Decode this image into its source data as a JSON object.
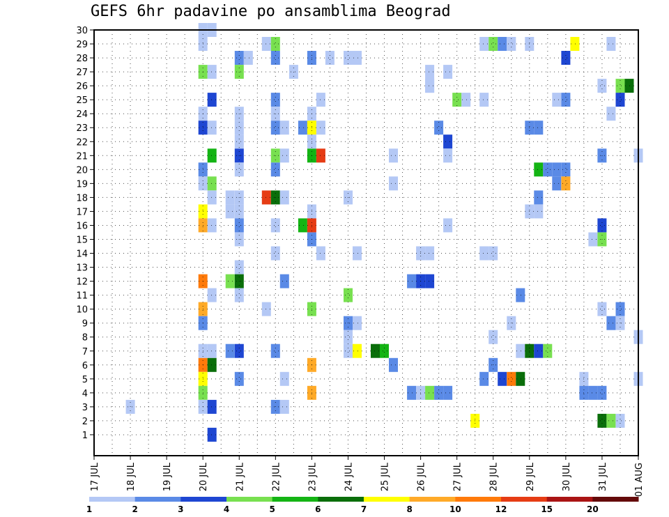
{
  "chart_data": {
    "type": "heatmap",
    "title": "GEFS 6hr padavine po ansamblima Beograd",
    "y_ticks": [
      "1",
      "2",
      "3",
      "4",
      "5",
      "6",
      "7",
      "8",
      "9",
      "10",
      "11",
      "12",
      "13",
      "14",
      "15",
      "16",
      "17",
      "18",
      "19",
      "20",
      "21",
      "22",
      "23",
      "24",
      "25",
      "26",
      "27",
      "28",
      "29",
      "30"
    ],
    "ylim": [
      0,
      30
    ],
    "x_ticks": [
      "17 JUL",
      "18 JUL",
      "19 JUL",
      "20 JUL",
      "21 JUL",
      "22 JUL",
      "23 JUL",
      "24 JUL",
      "25 JUL",
      "26 JUL",
      "27 JUL",
      "28 JUL",
      "29 JUL",
      "30 JUL",
      "31 JUL",
      "01 AUG"
    ],
    "x_range_steps": [
      0,
      60
    ],
    "grid": true,
    "colorbar": {
      "labels": [
        "1",
        "2",
        "3",
        "4",
        "5",
        "6",
        "7",
        "8",
        "10",
        "12",
        "15",
        "20"
      ],
      "colors": [
        "#b4c8f5",
        "#5a8ae6",
        "#1e46d2",
        "#78e050",
        "#14b414",
        "#0a6e0a",
        "#ffff00",
        "#ffaa28",
        "#ff7a0a",
        "#e63c14",
        "#aa1414",
        "#640a0a"
      ]
    },
    "cells": [
      [
        12,
        30,
        1
      ],
      [
        13,
        30,
        1
      ],
      [
        12,
        29,
        1
      ],
      [
        19,
        29,
        1
      ],
      [
        20,
        29,
        4
      ],
      [
        43,
        29,
        1
      ],
      [
        44,
        29,
        4
      ],
      [
        45,
        29,
        2
      ],
      [
        46,
        29,
        1
      ],
      [
        48,
        29,
        1
      ],
      [
        53,
        29,
        7
      ],
      [
        57,
        29,
        1
      ],
      [
        16,
        28,
        2
      ],
      [
        17,
        28,
        1
      ],
      [
        20,
        28,
        2
      ],
      [
        24,
        28,
        2
      ],
      [
        26,
        28,
        1
      ],
      [
        28,
        28,
        1
      ],
      [
        29,
        28,
        1
      ],
      [
        52,
        28,
        3
      ],
      [
        12,
        27,
        4
      ],
      [
        13,
        27,
        1
      ],
      [
        16,
        27,
        4
      ],
      [
        22,
        27,
        1
      ],
      [
        37,
        27,
        1
      ],
      [
        39,
        27,
        1
      ],
      [
        37,
        26,
        1
      ],
      [
        37,
        26,
        1
      ],
      [
        56,
        26,
        1
      ],
      [
        58,
        26,
        4
      ],
      [
        59,
        26,
        6
      ],
      [
        13,
        25,
        3
      ],
      [
        20,
        25,
        2
      ],
      [
        25,
        25,
        1
      ],
      [
        40,
        25,
        4
      ],
      [
        41,
        25,
        1
      ],
      [
        43,
        25,
        1
      ],
      [
        51,
        25,
        1
      ],
      [
        52,
        25,
        2
      ],
      [
        58,
        25,
        3
      ],
      [
        12,
        24,
        1
      ],
      [
        16,
        24,
        1
      ],
      [
        20,
        24,
        1
      ],
      [
        24,
        24,
        1
      ],
      [
        57,
        24,
        1
      ],
      [
        12,
        23,
        3
      ],
      [
        13,
        23,
        1
      ],
      [
        16,
        23,
        1
      ],
      [
        20,
        23,
        2
      ],
      [
        21,
        23,
        1
      ],
      [
        23,
        23,
        2
      ],
      [
        24,
        23,
        7
      ],
      [
        25,
        23,
        1
      ],
      [
        38,
        23,
        2
      ],
      [
        48,
        23,
        2
      ],
      [
        49,
        23,
        2
      ],
      [
        16,
        22,
        1
      ],
      [
        24,
        22,
        1
      ],
      [
        39,
        22,
        3
      ],
      [
        13,
        21,
        5
      ],
      [
        16,
        21,
        3
      ],
      [
        20,
        21,
        4
      ],
      [
        21,
        21,
        1
      ],
      [
        24,
        21,
        5
      ],
      [
        25,
        21,
        10
      ],
      [
        33,
        21,
        1
      ],
      [
        39,
        21,
        1
      ],
      [
        56,
        21,
        2
      ],
      [
        60,
        21,
        1
      ],
      [
        12,
        20,
        2
      ],
      [
        16,
        20,
        1
      ],
      [
        20,
        20,
        2
      ],
      [
        49,
        20,
        5
      ],
      [
        50,
        20,
        2
      ],
      [
        51,
        20,
        2
      ],
      [
        52,
        20,
        2
      ],
      [
        12,
        19,
        1
      ],
      [
        13,
        19,
        4
      ],
      [
        33,
        19,
        1
      ],
      [
        51,
        19,
        2
      ],
      [
        52,
        19,
        8
      ],
      [
        13,
        18,
        1
      ],
      [
        15,
        18,
        1
      ],
      [
        16,
        18,
        1
      ],
      [
        19,
        18,
        10
      ],
      [
        20,
        18,
        6
      ],
      [
        21,
        18,
        1
      ],
      [
        28,
        18,
        1
      ],
      [
        49,
        18,
        2
      ],
      [
        12,
        17,
        7
      ],
      [
        15,
        17,
        1
      ],
      [
        16,
        17,
        1
      ],
      [
        24,
        17,
        1
      ],
      [
        48,
        17,
        1
      ],
      [
        49,
        17,
        1
      ],
      [
        12,
        16,
        8
      ],
      [
        13,
        16,
        1
      ],
      [
        16,
        16,
        2
      ],
      [
        20,
        16,
        1
      ],
      [
        23,
        16,
        5
      ],
      [
        24,
        16,
        10
      ],
      [
        39,
        16,
        1
      ],
      [
        56,
        16,
        3
      ],
      [
        16,
        15,
        1
      ],
      [
        24,
        15,
        2
      ],
      [
        55,
        15,
        1
      ],
      [
        56,
        15,
        4
      ],
      [
        20,
        14,
        1
      ],
      [
        25,
        14,
        1
      ],
      [
        29,
        14,
        1
      ],
      [
        36,
        14,
        1
      ],
      [
        37,
        14,
        1
      ],
      [
        43,
        14,
        1
      ],
      [
        44,
        14,
        1
      ],
      [
        16,
        13,
        1
      ],
      [
        12,
        12,
        9
      ],
      [
        15,
        12,
        4
      ],
      [
        16,
        12,
        6
      ],
      [
        21,
        12,
        2
      ],
      [
        35,
        12,
        2
      ],
      [
        36,
        12,
        3
      ],
      [
        37,
        12,
        3
      ],
      [
        13,
        11,
        1
      ],
      [
        16,
        11,
        1
      ],
      [
        28,
        11,
        4
      ],
      [
        47,
        11,
        2
      ],
      [
        12,
        10,
        8
      ],
      [
        19,
        10,
        1
      ],
      [
        24,
        10,
        4
      ],
      [
        56,
        10,
        1
      ],
      [
        58,
        10,
        2
      ],
      [
        12,
        9,
        2
      ],
      [
        28,
        9,
        2
      ],
      [
        29,
        9,
        1
      ],
      [
        46,
        9,
        1
      ],
      [
        57,
        9,
        2
      ],
      [
        58,
        9,
        1
      ],
      [
        28,
        8,
        1
      ],
      [
        44,
        8,
        1
      ],
      [
        60,
        8,
        1
      ],
      [
        12,
        7,
        1
      ],
      [
        13,
        7,
        1
      ],
      [
        15,
        7,
        2
      ],
      [
        16,
        7,
        3
      ],
      [
        20,
        7,
        2
      ],
      [
        28,
        7,
        1
      ],
      [
        29,
        7,
        7
      ],
      [
        31,
        7,
        6
      ],
      [
        32,
        7,
        5
      ],
      [
        47,
        7,
        1
      ],
      [
        48,
        7,
        6
      ],
      [
        49,
        7,
        3
      ],
      [
        50,
        7,
        4
      ],
      [
        12,
        6,
        9
      ],
      [
        13,
        6,
        6
      ],
      [
        24,
        6,
        8
      ],
      [
        33,
        6,
        2
      ],
      [
        44,
        6,
        2
      ],
      [
        12,
        5,
        7
      ],
      [
        16,
        5,
        2
      ],
      [
        21,
        5,
        1
      ],
      [
        43,
        5,
        2
      ],
      [
        45,
        5,
        3
      ],
      [
        46,
        5,
        9
      ],
      [
        47,
        5,
        6
      ],
      [
        54,
        5,
        1
      ],
      [
        60,
        5,
        1
      ],
      [
        12,
        4,
        4
      ],
      [
        24,
        4,
        8
      ],
      [
        35,
        4,
        2
      ],
      [
        36,
        4,
        1
      ],
      [
        37,
        4,
        4
      ],
      [
        38,
        4,
        2
      ],
      [
        39,
        4,
        2
      ],
      [
        54,
        4,
        2
      ],
      [
        55,
        4,
        2
      ],
      [
        56,
        4,
        2
      ],
      [
        4,
        3,
        1
      ],
      [
        12,
        3,
        1
      ],
      [
        13,
        3,
        3
      ],
      [
        20,
        3,
        2
      ],
      [
        21,
        3,
        1
      ],
      [
        42,
        2,
        7
      ],
      [
        56,
        2,
        6
      ],
      [
        57,
        2,
        4
      ],
      [
        58,
        2,
        1
      ],
      [
        13,
        1,
        3
      ]
    ]
  }
}
